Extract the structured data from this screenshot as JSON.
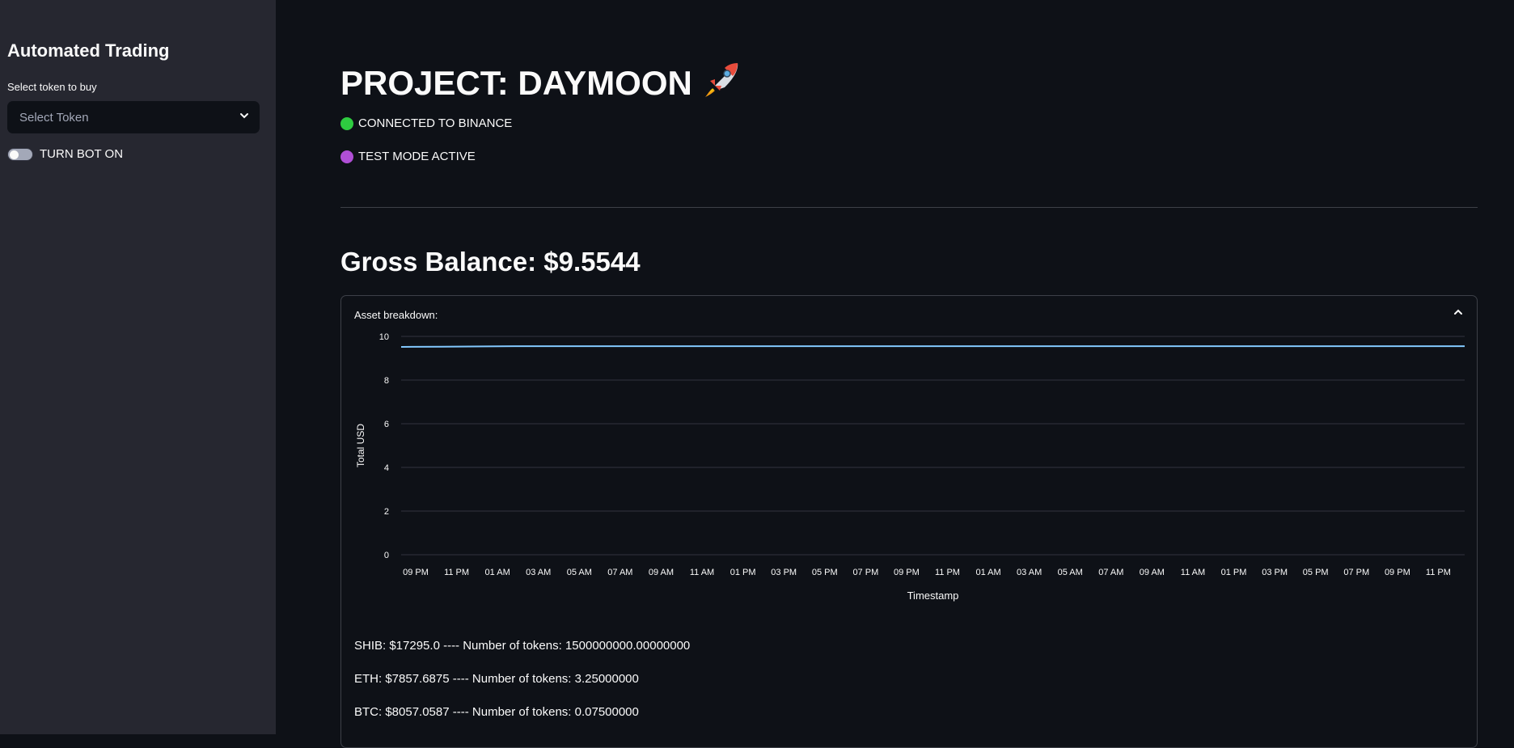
{
  "sidebar": {
    "title": "Automated Trading",
    "select_label": "Select token to buy",
    "select_placeholder": "Select Token",
    "toggle_label": "TURN BOT ON"
  },
  "main": {
    "title": "PROJECT: DAYMOON",
    "title_emoji": "🚀",
    "status_connected": "CONNECTED TO BINANCE",
    "status_test_mode": "TEST MODE ACTIVE",
    "balance": "Gross Balance: $9.5544",
    "expander_label": "Asset breakdown:"
  },
  "colors": {
    "connected": "#2ecc40",
    "test_mode": "#b04fd6",
    "line": "#83c9ff"
  },
  "chart_data": {
    "type": "line",
    "xlabel": "Timestamp",
    "ylabel": "Total USD",
    "ylim": [
      0,
      10
    ],
    "yticks": [
      0,
      2,
      4,
      6,
      8,
      10
    ],
    "xticks": [
      "09 PM",
      "11 PM",
      "01 AM",
      "03 AM",
      "05 AM",
      "07 AM",
      "09 AM",
      "11 AM",
      "01 PM",
      "03 PM",
      "05 PM",
      "07 PM",
      "09 PM",
      "11 PM",
      "01 AM",
      "03 AM",
      "05 AM",
      "07 AM",
      "09 AM",
      "11 AM",
      "01 PM",
      "03 PM",
      "05 PM",
      "07 PM",
      "09 PM",
      "11 PM"
    ],
    "series": [
      {
        "values": [
          9.52,
          9.53,
          9.54,
          9.55,
          9.55,
          9.55,
          9.55,
          9.55,
          9.55,
          9.55,
          9.55,
          9.55,
          9.55,
          9.55,
          9.55,
          9.55,
          9.55,
          9.55,
          9.55,
          9.55,
          9.55,
          9.55,
          9.55,
          9.55,
          9.55,
          9.55,
          9.55
        ]
      }
    ],
    "grid": true
  },
  "assets": [
    "SHIB: $17295.0 ---- Number of tokens: 1500000000.00000000",
    "ETH: $7857.6875 ---- Number of tokens: 3.25000000",
    "BTC: $8057.0587 ---- Number of tokens: 0.07500000"
  ]
}
